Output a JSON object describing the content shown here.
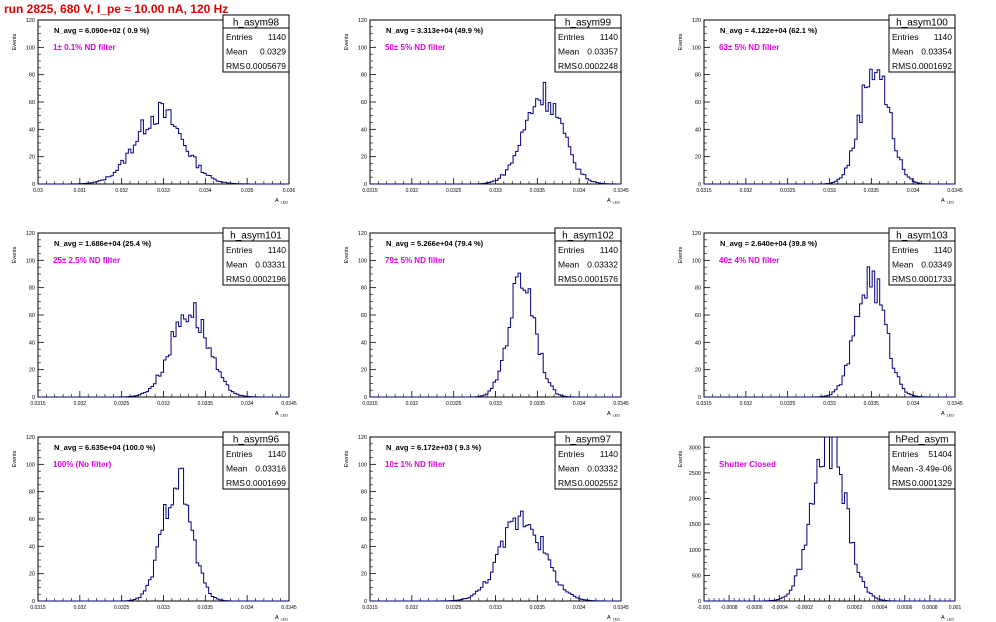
{
  "page": {
    "title": "run 2825,   680 V, I_pe ≈ 10.00 nA, 120 Hz",
    "y_axis_label": "Events",
    "x_axis_label": "A",
    "x_axis_label_sub": "LED",
    "stats_labels": {
      "entries": "Entries",
      "mean": "Mean",
      "rms": "RMS"
    }
  },
  "colors": {
    "title": "#e00000",
    "histogram": "#00007f",
    "annotation": "#e000e0",
    "frame": "#000000"
  },
  "chart_data": [
    {
      "type": "histogram",
      "name": "h_asym98",
      "n_avg": "N_avg = 6.090e+02 ( 0.9 %)",
      "filter": "1± 0.1% ND filter",
      "entries": "1140",
      "mean": "0.0329",
      "rms": "0.0005679",
      "xlim": [
        0.03,
        0.036
      ],
      "ylim": [
        0,
        120
      ],
      "xticks": [
        "0.03",
        "0.031",
        "0.032",
        "0.033",
        "0.034",
        "0.035",
        "0.036"
      ],
      "yticks": [
        "0",
        "20",
        "40",
        "60",
        "80",
        "100",
        "120"
      ],
      "center": 0.0329,
      "sigma": 0.000568,
      "peak": 52
    },
    {
      "type": "histogram",
      "name": "h_asym99",
      "n_avg": "N_avg = 3.313e+04 (49.9 %)",
      "filter": "50± 5% ND filter",
      "entries": "1140",
      "mean": "0.03357",
      "rms": "0.0002248",
      "xlim": [
        0.0315,
        0.0345
      ],
      "ylim": [
        0,
        120
      ],
      "xticks": [
        "0.0315",
        "0.032",
        "0.0325",
        "0.033",
        "0.0335",
        "0.034",
        "0.0345"
      ],
      "yticks": [
        "0",
        "20",
        "40",
        "60",
        "80",
        "100",
        "120"
      ],
      "center": 0.03357,
      "sigma": 0.000225,
      "peak": 66
    },
    {
      "type": "histogram",
      "name": "h_asym100",
      "n_avg": "N_avg = 4.122e+04 (62.1 %)",
      "filter": "63± 5% ND filter",
      "entries": "1140",
      "mean": "0.03354",
      "rms": "0.0001692",
      "xlim": [
        0.0315,
        0.0345
      ],
      "ylim": [
        0,
        120
      ],
      "xticks": [
        "0.0315",
        "0.032",
        "0.0325",
        "0.033",
        "0.0335",
        "0.034",
        "0.0345"
      ],
      "yticks": [
        "0",
        "20",
        "40",
        "60",
        "80",
        "100",
        "120"
      ],
      "center": 0.03354,
      "sigma": 0.000169,
      "peak": 88
    },
    {
      "type": "histogram",
      "name": "h_asym101",
      "n_avg": "N_avg = 1.686e+04 (25.4 %)",
      "filter": "25± 2.5% ND filter",
      "entries": "1140",
      "mean": "0.03331",
      "rms": "0.0002196",
      "xlim": [
        0.0315,
        0.0345
      ],
      "ylim": [
        0,
        120
      ],
      "xticks": [
        "0.0315",
        "0.032",
        "0.0325",
        "0.033",
        "0.0335",
        "0.034",
        "0.0345"
      ],
      "yticks": [
        "0",
        "20",
        "40",
        "60",
        "80",
        "100",
        "120"
      ],
      "center": 0.03331,
      "sigma": 0.00022,
      "peak": 64
    },
    {
      "type": "histogram",
      "name": "h_asym102",
      "n_avg": "N_avg = 5.266e+04 (79.4 %)",
      "filter": "79± 5% ND filter",
      "entries": "1140",
      "mean": "0.03332",
      "rms": "0.0001576",
      "xlim": [
        0.0315,
        0.0345
      ],
      "ylim": [
        0,
        120
      ],
      "xticks": [
        "0.0315",
        "0.032",
        "0.0325",
        "0.033",
        "0.0335",
        "0.034",
        "0.0345"
      ],
      "yticks": [
        "0",
        "20",
        "40",
        "60",
        "80",
        "100",
        "120"
      ],
      "center": 0.03332,
      "sigma": 0.000158,
      "peak": 88
    },
    {
      "type": "histogram",
      "name": "h_asym103",
      "n_avg": "N_avg = 2.640e+04 (39.8 %)",
      "filter": "40± 4% ND filter",
      "entries": "1140",
      "mean": "0.03349",
      "rms": "0.0001733",
      "xlim": [
        0.0315,
        0.0345
      ],
      "ylim": [
        0,
        120
      ],
      "xticks": [
        "0.0315",
        "0.032",
        "0.0325",
        "0.033",
        "0.0335",
        "0.034",
        "0.0345"
      ],
      "yticks": [
        "0",
        "20",
        "40",
        "60",
        "80",
        "100",
        "120"
      ],
      "center": 0.03349,
      "sigma": 0.000173,
      "peak": 88
    },
    {
      "type": "histogram",
      "name": "h_asym96",
      "n_avg": "N_avg = 6.635e+04 (100.0 %)",
      "filter": "100% (No filter)",
      "entries": "1140",
      "mean": "0.03316",
      "rms": "0.0001699",
      "xlim": [
        0.0315,
        0.0345
      ],
      "ylim": [
        0,
        120
      ],
      "xticks": [
        "0.0315",
        "0.032",
        "0.0325",
        "0.033",
        "0.0335",
        "0.034",
        "0.0345"
      ],
      "yticks": [
        "0",
        "20",
        "40",
        "60",
        "80",
        "100",
        "120"
      ],
      "center": 0.03316,
      "sigma": 0.00017,
      "peak": 90
    },
    {
      "type": "histogram",
      "name": "h_asym97",
      "n_avg": "N_avg = 6.172e+03 ( 9.3 %)",
      "filter": "10± 1% ND filter",
      "entries": "1140",
      "mean": "0.03332",
      "rms": "0.0002552",
      "xlim": [
        0.0315,
        0.0345
      ],
      "ylim": [
        0,
        120
      ],
      "xticks": [
        "0.0315",
        "0.032",
        "0.0325",
        "0.033",
        "0.0335",
        "0.034",
        "0.0345"
      ],
      "yticks": [
        "0",
        "20",
        "40",
        "60",
        "80",
        "100",
        "120"
      ],
      "center": 0.03332,
      "sigma": 0.000255,
      "peak": 62
    },
    {
      "type": "histogram",
      "name": "hPed_asym",
      "n_avg": "",
      "filter": "Shutter Closed",
      "entries": "51404",
      "mean": "-3.49e-06",
      "rms": "0.0001329",
      "xlim": [
        -0.001,
        0.001
      ],
      "ylim": [
        0,
        3200
      ],
      "xticks": [
        "-0.001",
        "-0.0008",
        "-0.0006",
        "-0.0004",
        "-0.0002",
        "0",
        "0.0002",
        "0.0004",
        "0.0006",
        "0.0008",
        "0.001"
      ],
      "yticks": [
        "0",
        "500",
        "1000",
        "1500",
        "2000",
        "2500",
        "3000"
      ],
      "center": -3.5e-06,
      "sigma": 0.000133,
      "peak": 3100
    }
  ]
}
